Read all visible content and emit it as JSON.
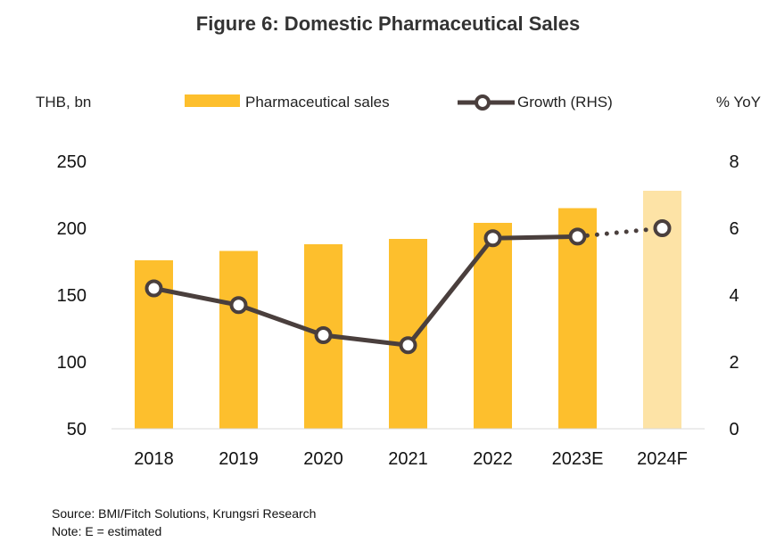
{
  "chart_data": {
    "type": "bar",
    "title": "Figure 6: Domestic Pharmaceutical Sales",
    "ylabel": "THB, bn",
    "y2label": "% YoY",
    "categories": [
      "2018",
      "2019",
      "2020",
      "2021",
      "2022",
      "2023E",
      "2024F"
    ],
    "ylim": [
      50,
      250
    ],
    "yticks": [
      50,
      100,
      150,
      200,
      250
    ],
    "y2lim": [
      0,
      8
    ],
    "y2ticks": [
      0,
      2,
      4,
      6,
      8
    ],
    "grid": false,
    "legend_position": "top",
    "series": [
      {
        "name": "Pharmaceutical sales",
        "type": "bar",
        "axis": "left",
        "values": [
          176,
          183,
          188,
          192,
          204,
          215,
          228
        ],
        "color": "#FDBF2D",
        "forecast_color": "#FDE3A6"
      },
      {
        "name": "Growth (RHS)",
        "type": "line",
        "axis": "right",
        "values": [
          4.2,
          3.7,
          2.8,
          2.5,
          5.7,
          5.75,
          6.0
        ],
        "color": "#4A3F3D",
        "dotted_from_index": 5
      }
    ]
  },
  "source": "Source: BMI/Fitch Solutions, Krungsri Research",
  "note": "Note: E = estimated"
}
